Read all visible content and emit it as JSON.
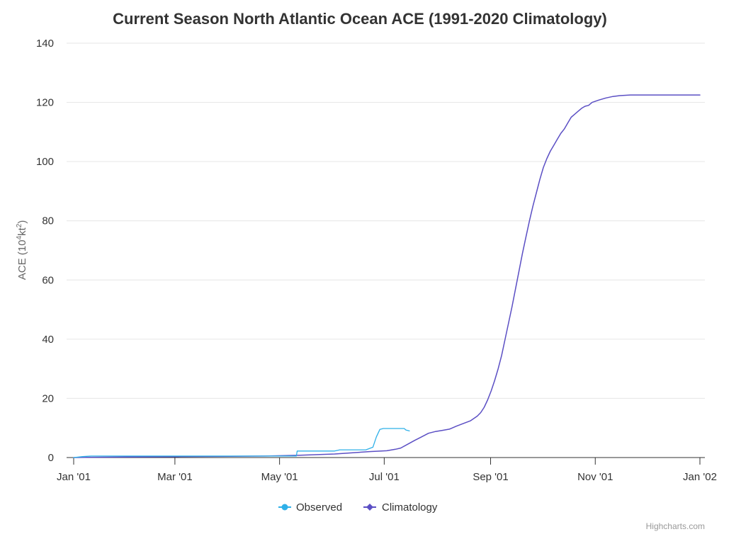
{
  "chart_data": {
    "type": "line",
    "title": "Current Season North Atlantic Ocean ACE (1991-2020 Climatology)",
    "xlabel": "",
    "ylabel": "ACE (10^4kt^2)",
    "ylabel_parts": {
      "pre": "ACE (10",
      "sup1": "4",
      "mid": "kt",
      "sup2": "2",
      "post": ")"
    },
    "x_ticks": [
      "Jan '01",
      "Mar '01",
      "May '01",
      "Jul '01",
      "Sep '01",
      "Nov '01",
      "Jan '02"
    ],
    "y_ticks": [
      "0",
      "20",
      "40",
      "60",
      "80",
      "100",
      "120",
      "140"
    ],
    "ylim": [
      0,
      140
    ],
    "xlim_day": [
      0,
      360
    ],
    "x_unit": "day of year (Jan 1 = 0)",
    "grid": "horizontal",
    "legend_position": "bottom-center",
    "series": [
      {
        "name": "Observed",
        "color": "#2fb0e8",
        "points": [
          [
            0,
            0
          ],
          [
            5,
            0.3
          ],
          [
            10,
            0.5
          ],
          [
            30,
            0.5
          ],
          [
            60,
            0.5
          ],
          [
            90,
            0.5
          ],
          [
            110,
            0.5
          ],
          [
            128,
            0.5
          ],
          [
            128.5,
            2.2
          ],
          [
            150,
            2.2
          ],
          [
            153,
            2.6
          ],
          [
            168,
            2.6
          ],
          [
            172,
            3.5
          ],
          [
            174,
            7
          ],
          [
            176,
            9.5
          ],
          [
            178,
            9.8
          ],
          [
            183,
            9.8
          ],
          [
            190,
            9.8
          ],
          [
            191,
            9.3
          ],
          [
            193,
            9.0
          ]
        ]
      },
      {
        "name": "Climatology",
        "color": "#5b4fc4",
        "points": [
          [
            0,
            0
          ],
          [
            10,
            0.1
          ],
          [
            30,
            0.2
          ],
          [
            60,
            0.3
          ],
          [
            90,
            0.4
          ],
          [
            110,
            0.5
          ],
          [
            130,
            0.8
          ],
          [
            150,
            1.2
          ],
          [
            170,
            2.0
          ],
          [
            180,
            2.3
          ],
          [
            185,
            2.8
          ],
          [
            188,
            3.2
          ],
          [
            192,
            4.5
          ],
          [
            196,
            5.8
          ],
          [
            200,
            7.0
          ],
          [
            204,
            8.2
          ],
          [
            208,
            8.8
          ],
          [
            212,
            9.2
          ],
          [
            216,
            9.6
          ],
          [
            220,
            10.6
          ],
          [
            224,
            11.5
          ],
          [
            228,
            12.4
          ],
          [
            232,
            14.0
          ],
          [
            234,
            15.2
          ],
          [
            236,
            17.0
          ],
          [
            238,
            19.5
          ],
          [
            240,
            22.5
          ],
          [
            242,
            26.0
          ],
          [
            244,
            30.0
          ],
          [
            246,
            34.5
          ],
          [
            248,
            40.0
          ],
          [
            250,
            45.5
          ],
          [
            252,
            51.0
          ],
          [
            254,
            57.0
          ],
          [
            256,
            63.0
          ],
          [
            258,
            69.0
          ],
          [
            260,
            74.5
          ],
          [
            262,
            80.0
          ],
          [
            264,
            85.0
          ],
          [
            266,
            89.5
          ],
          [
            268,
            94.0
          ],
          [
            270,
            98.0
          ],
          [
            272,
            101.0
          ],
          [
            274,
            103.5
          ],
          [
            276,
            105.5
          ],
          [
            278,
            107.5
          ],
          [
            280,
            109.5
          ],
          [
            282,
            111.0
          ],
          [
            284,
            113.0
          ],
          [
            286,
            115.0
          ],
          [
            288,
            116.0
          ],
          [
            290,
            117.0
          ],
          [
            292,
            118.0
          ],
          [
            294,
            118.7
          ],
          [
            296,
            119.0
          ],
          [
            298,
            120.0
          ],
          [
            302,
            120.8
          ],
          [
            306,
            121.5
          ],
          [
            310,
            122.0
          ],
          [
            314,
            122.3
          ],
          [
            320,
            122.5
          ],
          [
            330,
            122.5
          ],
          [
            345,
            122.5
          ],
          [
            360,
            122.5
          ]
        ]
      }
    ]
  },
  "credits": "Highcharts.com"
}
